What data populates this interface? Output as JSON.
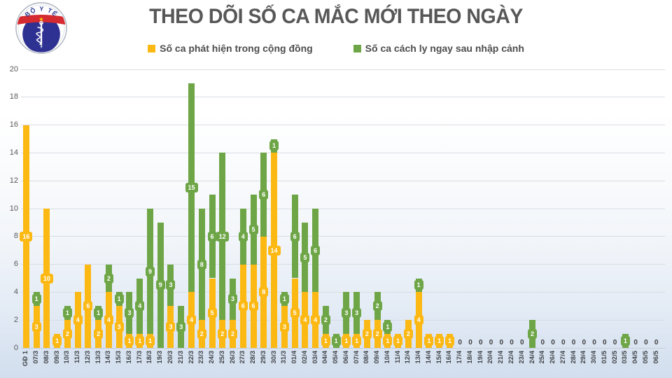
{
  "title": "THEO DÕI SỐ CA MẮC MỚI THEO NGÀY",
  "logo": {
    "top_text": "BỘ Y TẾ",
    "bottom_text": "MINISTRY OF HEALTH"
  },
  "legend": [
    {
      "label": "Số ca phát hiện trong cộng đồng",
      "color": "#FCB813"
    },
    {
      "label": "Số ca cách ly ngay sau nhập cảnh",
      "color": "#6EA647"
    }
  ],
  "colors": {
    "community": "#FCB813",
    "imported": "#6EA647",
    "gridline": "#d9dde3",
    "axis_text": "#595959",
    "title_text": "#575757",
    "zero_text": "#404040"
  },
  "chart_data": {
    "type": "bar",
    "stacked": true,
    "grid": true,
    "legend_position": "top",
    "ylim": [
      0,
      20
    ],
    "yticks": [
      0,
      2,
      4,
      6,
      8,
      10,
      12,
      14,
      16,
      18,
      20
    ],
    "zero_label": "0",
    "categories": [
      "GĐ 1",
      "07/3",
      "08/3",
      "09/3",
      "10/3",
      "11/3",
      "12/3",
      "13/3",
      "14/3",
      "15/3",
      "16/3",
      "17/3",
      "18/3",
      "19/3",
      "20/3",
      "21/3",
      "22/3",
      "23/3",
      "24/3",
      "25/3",
      "26/3",
      "27/3",
      "28/3",
      "29/3",
      "30/3",
      "31/3",
      "01/4",
      "02/4",
      "03/4",
      "04/4",
      "05/4",
      "06/4",
      "07/4",
      "08/4",
      "09/4",
      "10/4",
      "11/4",
      "12/4",
      "13/4",
      "14/4",
      "15/4",
      "16/4",
      "17/4",
      "18/4",
      "19/4",
      "20/4",
      "21/4",
      "22/4",
      "23/4",
      "24/4",
      "25/4",
      "26/4",
      "27/4",
      "28/4",
      "29/4",
      "30/4",
      "01/5",
      "02/5",
      "03/5",
      "04/5",
      "05/5",
      "06/5"
    ],
    "series": [
      {
        "name": "Số ca phát hiện trong cộng đồng",
        "color": "#FCB813",
        "values": [
          16,
          3,
          10,
          1,
          2,
          4,
          6,
          2,
          4,
          3,
          1,
          1,
          1,
          0,
          3,
          0,
          4,
          2,
          5,
          2,
          2,
          6,
          6,
          8,
          14,
          3,
          5,
          4,
          4,
          1,
          0,
          1,
          1,
          2,
          2,
          1,
          1,
          2,
          4,
          1,
          1,
          1,
          0,
          0,
          0,
          0,
          0,
          0,
          0,
          0,
          0,
          0,
          0,
          0,
          0,
          0,
          0,
          0,
          0,
          0,
          0,
          0
        ]
      },
      {
        "name": "Số ca cách ly ngay sau nhập cảnh",
        "color": "#6EA647",
        "values": [
          0,
          1,
          0,
          0,
          1,
          0,
          0,
          1,
          2,
          1,
          3,
          4,
          9,
          9,
          3,
          3,
          15,
          8,
          6,
          12,
          3,
          4,
          5,
          6,
          1,
          1,
          6,
          5,
          6,
          2,
          1,
          3,
          3,
          0,
          2,
          1,
          0,
          0,
          1,
          0,
          0,
          0,
          0,
          0,
          0,
          0,
          0,
          0,
          0,
          2,
          0,
          0,
          0,
          0,
          0,
          0,
          0,
          0,
          1,
          0,
          0,
          0
        ]
      }
    ]
  }
}
